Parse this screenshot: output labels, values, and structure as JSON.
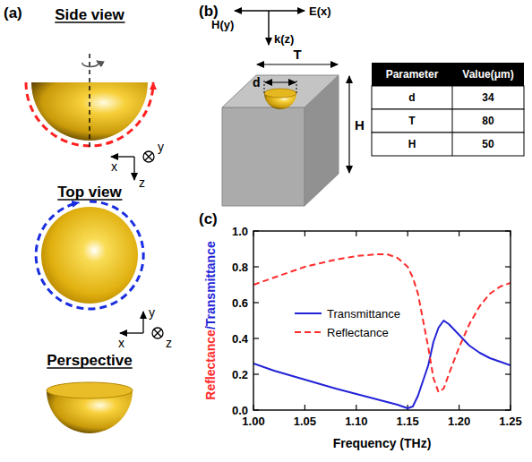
{
  "chart_data": {
    "type": "line",
    "panel_label": "(c)",
    "xlabel": "Frequency (THz)",
    "ylabel": "Reflectance/Transmittance",
    "x": [
      1.0,
      1.02,
      1.05,
      1.08,
      1.1,
      1.12,
      1.13,
      1.14,
      1.15,
      1.155,
      1.16,
      1.17,
      1.175,
      1.18,
      1.185,
      1.19,
      1.2,
      1.21,
      1.22,
      1.23,
      1.24,
      1.25
    ],
    "series": [
      {
        "name": "Transmittance",
        "color": "#2323d8",
        "line_style": "solid",
        "values": [
          0.26,
          0.22,
          0.17,
          0.12,
          0.09,
          0.06,
          0.045,
          0.03,
          0.01,
          0.02,
          0.08,
          0.25,
          0.38,
          0.46,
          0.5,
          0.48,
          0.42,
          0.36,
          0.32,
          0.29,
          0.27,
          0.25
        ]
      },
      {
        "name": "Reflectance",
        "color": "#ff2b2b",
        "line_style": "dashed",
        "values": [
          0.7,
          0.74,
          0.8,
          0.84,
          0.86,
          0.87,
          0.87,
          0.85,
          0.8,
          0.74,
          0.65,
          0.35,
          0.18,
          0.1,
          0.12,
          0.2,
          0.35,
          0.48,
          0.58,
          0.65,
          0.69,
          0.71
        ]
      }
    ],
    "xlim": [
      1.0,
      1.25
    ],
    "ylim": [
      0,
      1
    ],
    "xticks": [
      {
        "value": 1.0,
        "label": "1.00"
      },
      {
        "value": 1.05,
        "label": "1.05"
      },
      {
        "value": 1.1,
        "label": "1.10"
      },
      {
        "value": 1.15,
        "label": "1.15"
      },
      {
        "value": 1.2,
        "label": "1.20"
      },
      {
        "value": 1.25,
        "label": "1.25"
      }
    ],
    "yticks": [
      {
        "value": 0,
        "label": "0.0"
      },
      {
        "value": 0.2,
        "label": "0.2"
      },
      {
        "value": 0.4,
        "label": "0.4"
      },
      {
        "value": 0.6,
        "label": "0.6"
      },
      {
        "value": 0.8,
        "label": "0.8"
      },
      {
        "value": 1,
        "label": "1.0"
      }
    ],
    "legend": "center",
    "grid": false
  },
  "diagram": {
    "panel_a": {
      "label": "(a)",
      "side_view": {
        "title": "Side view",
        "axes": [
          "x",
          "y",
          "z"
        ]
      },
      "top_view": {
        "title": "Top view",
        "axes": [
          "x",
          "y",
          "z"
        ]
      },
      "perspective": {
        "title": "Perspective"
      }
    },
    "panel_b": {
      "label": "(b)",
      "fields": [
        "E(x)",
        "H(y)",
        "k(z)"
      ],
      "dimensions": [
        "d",
        "T",
        "H"
      ],
      "table": {
        "header": [
          "Parameter",
          "Value(μm)"
        ],
        "rows": [
          [
            "d",
            34
          ],
          [
            "T",
            80
          ],
          [
            "H",
            50
          ]
        ]
      }
    }
  }
}
